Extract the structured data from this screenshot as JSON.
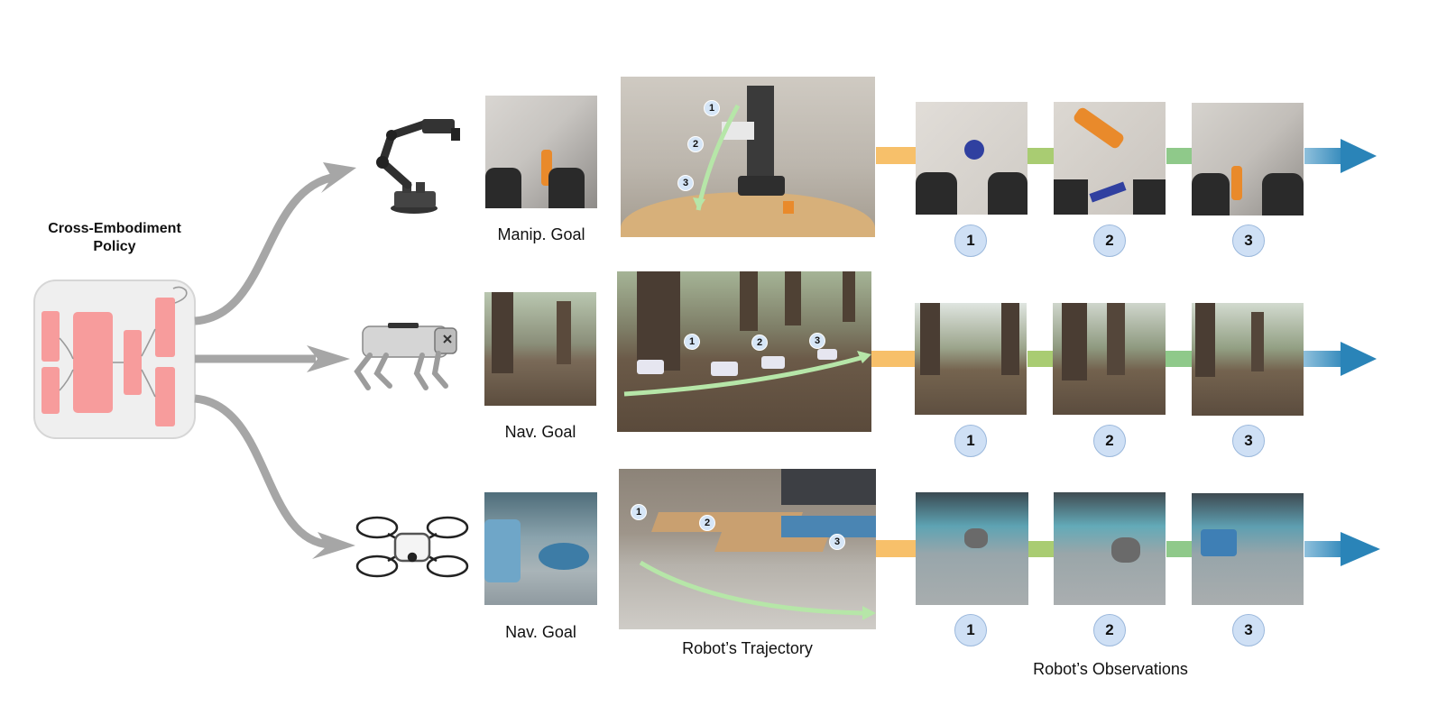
{
  "policy": {
    "title_line1": "Cross-Embodiment",
    "title_line2": "Policy"
  },
  "rows": [
    {
      "goal_label": "Manip. Goal",
      "badges": [
        "1",
        "2",
        "3"
      ],
      "traj_markers": [
        "1",
        "2",
        "3"
      ]
    },
    {
      "goal_label": "Nav. Goal",
      "badges": [
        "1",
        "2",
        "3"
      ],
      "traj_markers": [
        "1",
        "2",
        "3"
      ]
    },
    {
      "goal_label": "Nav. Goal",
      "badges": [
        "1",
        "2",
        "3"
      ],
      "traj_markers": [
        "1",
        "2",
        "3"
      ]
    }
  ],
  "labels": {
    "trajectory": "Robot’s Trajectory",
    "observations": "Robot’s Observations"
  },
  "colors": {
    "policy_block": "#f79c9c",
    "arrow_gray": "#a6a6a6",
    "connector_orange": "#f7c06a",
    "connector_green": "#a9cc72",
    "arrow_blue": "#2a84b8",
    "traj_green": "#b6e6a8"
  }
}
